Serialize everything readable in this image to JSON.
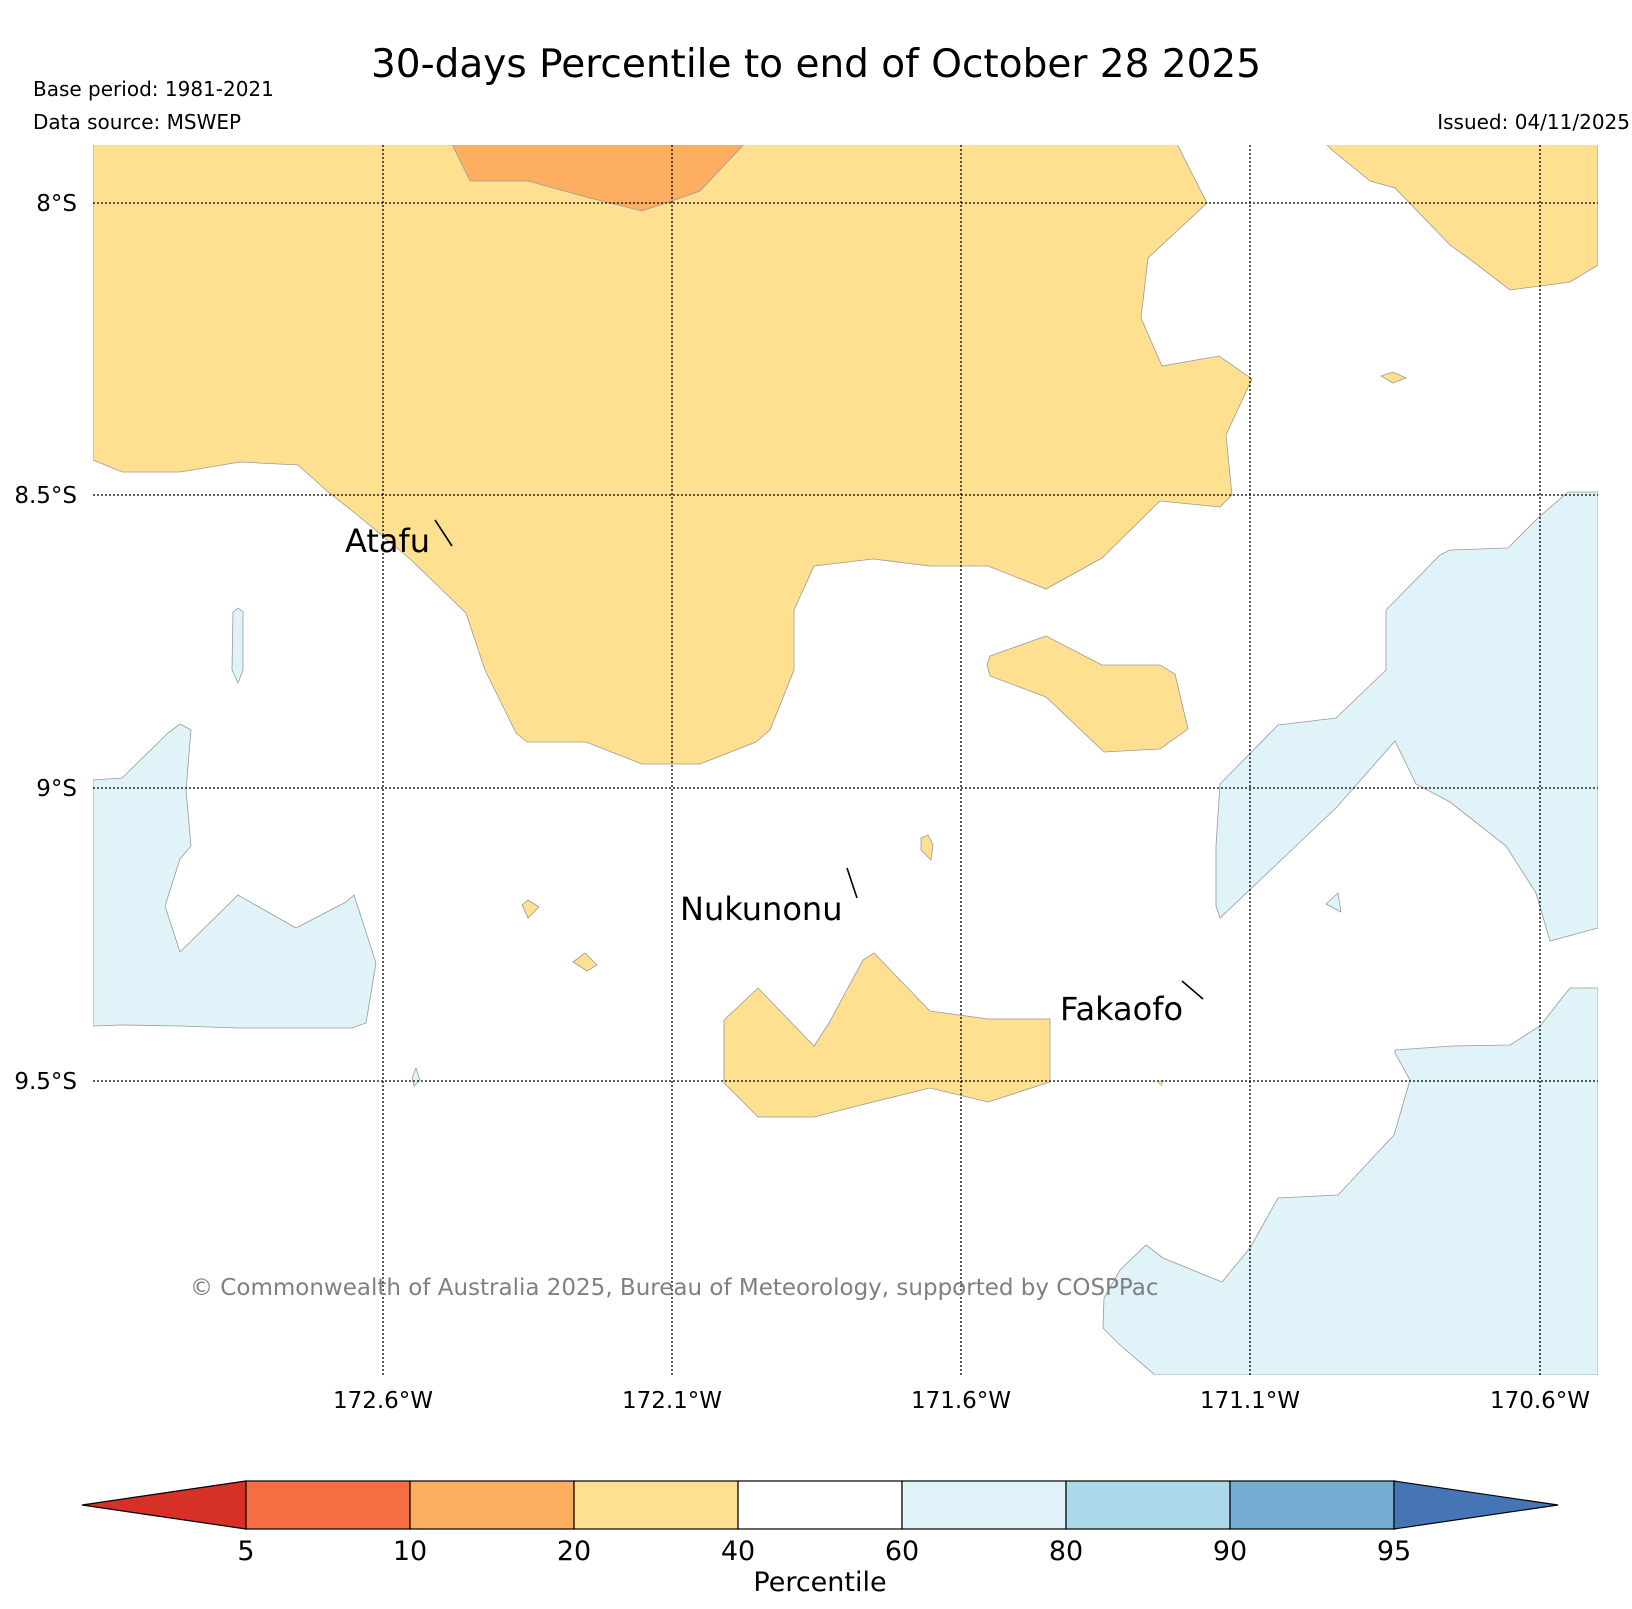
{
  "header": {
    "title": "30-days Percentile to end of October 28 2025",
    "base_period": "Base period: 1981-2021",
    "data_source": "Data source: MSWEP",
    "issued": "Issued: 04/11/2025"
  },
  "map": {
    "lat_labels": [
      "8°S",
      "8.5°S",
      "9°S",
      "9.5°S"
    ],
    "lon_labels": [
      "172.6°W",
      "172.1°W",
      "171.6°W",
      "171.1°W",
      "170.6°W"
    ],
    "places": [
      "Atafu",
      "Nukunonu",
      "Fakaofo"
    ],
    "copyright": "© Commonwealth of Australia 2025, Bureau of Meteorology, supported by COSPPac"
  },
  "colorbar": {
    "label": "Percentile",
    "ticks": [
      "5",
      "10",
      "20",
      "40",
      "60",
      "80",
      "90",
      "95"
    ],
    "colors": {
      "below_5": "#d73027",
      "p5_10": "#f46d43",
      "p10_20": "#fdae61",
      "p20_40": "#fee090",
      "p40_60": "#ffffff",
      "p60_80": "#e0f3f8",
      "p80_90": "#abd9e9",
      "p90_95": "#74add1",
      "above_95": "#4575b4"
    }
  }
}
